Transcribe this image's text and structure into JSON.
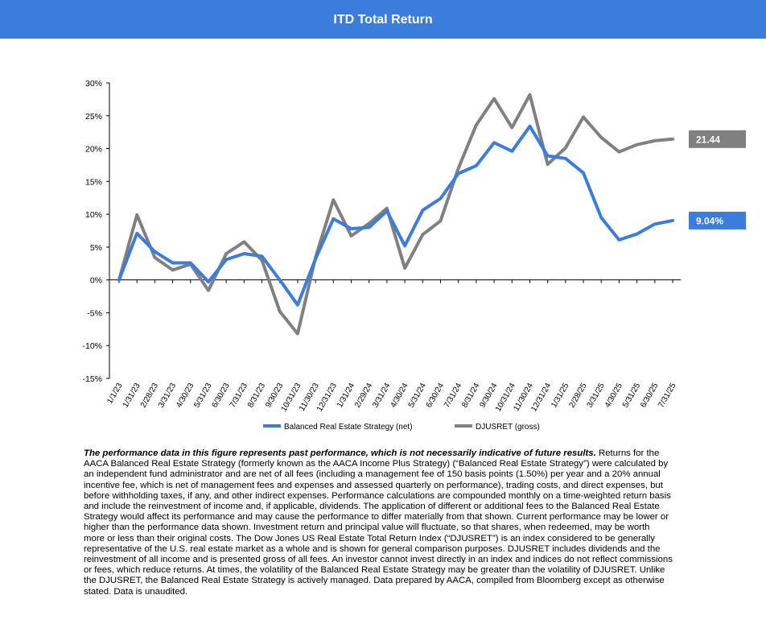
{
  "header": {
    "title": "ITD Total Return"
  },
  "chart_data": {
    "type": "line",
    "title": "ITD Total Return",
    "x": [
      "1/1/23",
      "1/31/23",
      "2/28/23",
      "3/31/23",
      "4/30/23",
      "5/31/23",
      "6/30/23",
      "7/31/23",
      "8/31/23",
      "9/30/23",
      "10/31/23",
      "11/30/23",
      "12/31/23",
      "1/31/24",
      "2/29/24",
      "3/31/24",
      "4/30/24",
      "5/31/24",
      "6/30/24",
      "7/31/24",
      "8/31/24",
      "9/30/24",
      "10/31/24",
      "11/30/24",
      "12/31/24",
      "1/31/25",
      "2/28/25",
      "3/31/25",
      "4/30/25",
      "5/31/25",
      "6/30/25",
      "7/31/25"
    ],
    "y_ticks": [
      "30%",
      "25%",
      "20%",
      "15%",
      "10%",
      "5%",
      "0%",
      "-5%",
      "-10%",
      "-15%"
    ],
    "ylim": [
      -15,
      30
    ],
    "series": [
      {
        "name": "Balanced Real Estate Strategy (net)",
        "color": "#3b7ddd",
        "values": [
          0,
          7.1,
          4.3,
          2.6,
          2.6,
          -0.3,
          3.1,
          4.0,
          3.6,
          0.0,
          -3.8,
          3.2,
          9.3,
          7.8,
          8.0,
          10.5,
          5.2,
          10.6,
          12.4,
          16.2,
          17.4,
          20.9,
          19.6,
          23.4,
          18.9,
          18.5,
          16.3,
          9.5,
          6.1,
          7.0,
          8.5,
          9.04
        ]
      },
      {
        "name": "DJUSRET (gross)",
        "color": "#808080",
        "values": [
          0,
          9.9,
          3.4,
          1.5,
          2.4,
          -1.6,
          4.0,
          5.8,
          3.0,
          -4.8,
          -8.2,
          3.4,
          12.2,
          6.7,
          8.6,
          10.9,
          1.8,
          6.9,
          9.0,
          17.0,
          23.6,
          27.6,
          23.2,
          28.2,
          17.6,
          20.1,
          24.8,
          21.7,
          19.5,
          20.6,
          21.2,
          21.44
        ]
      }
    ],
    "end_labels": [
      "9.04%",
      "21.44"
    ],
    "legend": "bottom",
    "grid": false
  },
  "footnote": {
    "bold": "The performance data in this figure represents past performance, which is not necessarily indicative of future results.",
    "text": " Returns for the AACA  Balanced Real Estate Strategy (formerly known as the AACA  Income Plus Strategy) (“Balanced Real Estate Strategy”) were calculated by an independent fund administrator and are net of all fees (including a management fee of 150 basis points (1.50%) per year and a 20% annual incentive fee, which is net of management fees and expenses and assessed quarterly on performance), trading costs, and direct expenses, but before withholding taxes, if any,  and other indirect expenses. Performance calculations are compounded monthly on a time-weighted return basis and include the reinvestment of income and, if applicable, dividends. The application of different or additional fees to the Balanced Real Estate Strategy would affect its performance and may cause the performance to differ materially from that shown. Current performance may be lower or higher than the performance data shown. Investment return and principal value will fluctuate, so that shares, when redeemed, may be worth more or less than their original costs. The Dow Jones US Real Estate Total Return Index (“DJUSRET”) is an index considered to be generally representative of the U.S. real estate market as a whole and is shown for general comparison purposes. DJUSRET includes dividends and the reinvestment of all income and is presented gross of all fees. An investor cannot invest directly in an index and indices do not reflect commissions or fees, which reduce returns. At times, the volatility of the Balanced Real Estate Strategy may be greater than the volatility of DJUSRET. Unlike the DJUSRET, the Balanced Real Estate Strategy is actively managed. Data prepared by AACA,  compiled from Bloomberg except as otherwise stated. Data is unaudited."
  }
}
